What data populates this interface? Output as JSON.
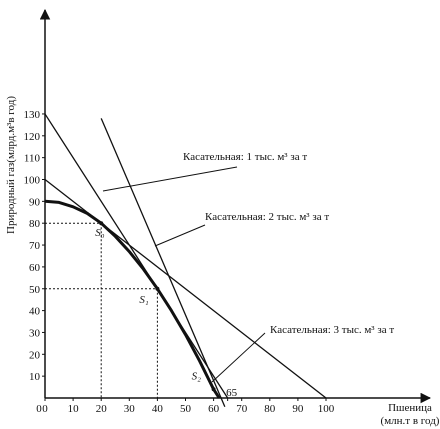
{
  "chart_data": {
    "type": "line",
    "xlabel": "Пшеница",
    "xlabel_units": "(млн.т в год)",
    "ylabel": "Природный газ(млрд.м³в год)",
    "x_ticks": [
      0,
      10,
      20,
      30,
      40,
      50,
      60,
      65,
      70,
      80,
      90,
      100
    ],
    "y_ticks": [
      10,
      20,
      30,
      40,
      50,
      60,
      70,
      80,
      90,
      100,
      110,
      120,
      130
    ],
    "xlim": [
      0,
      110
    ],
    "ylim": [
      0,
      140
    ],
    "grid": false,
    "curve": {
      "x": [
        0,
        5,
        10,
        15,
        20,
        25,
        30,
        35,
        40,
        45,
        50,
        55,
        60,
        62
      ],
      "y": [
        90,
        89.5,
        87.5,
        84.5,
        80,
        74,
        67,
        59,
        50,
        40,
        29,
        17,
        4,
        0
      ]
    },
    "tangents": [
      {
        "label": "Касательная: 1 тыс. м³ за т",
        "x": [
          0,
          100
        ],
        "y": [
          100,
          0
        ]
      },
      {
        "label": "Касательная: 2 тыс. м³ за т",
        "x": [
          0,
          65
        ],
        "y": [
          130,
          0
        ]
      },
      {
        "label": "Касательная: 3 тыс. м³ за т",
        "x": [
          20,
          64
        ],
        "y": [
          128,
          -4
        ]
      }
    ],
    "points": [
      {
        "label": "S₀",
        "x": 20,
        "y": 80
      },
      {
        "label": "S₁",
        "x": 40,
        "y": 50
      },
      {
        "label": "S₂",
        "x": 60,
        "y": 4
      }
    ]
  }
}
